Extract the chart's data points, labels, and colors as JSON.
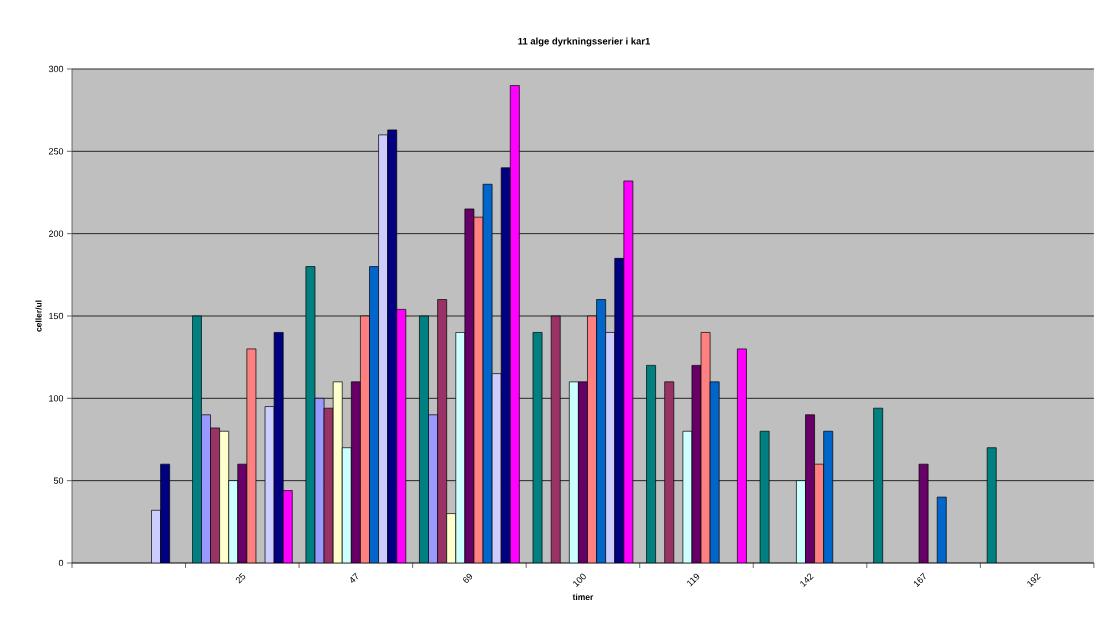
{
  "chart_data": {
    "type": "bar",
    "title": "11 alge dyrkningsserier i kar1",
    "xlabel": "timer",
    "ylabel": "celler/ul",
    "categories": [
      null,
      "25",
      "47",
      "69",
      "100",
      "119",
      "142",
      "167",
      "192"
    ],
    "series": [
      {
        "color": "#008080",
        "values": [
          null,
          150,
          180,
          150,
          140,
          120,
          80,
          94,
          70
        ]
      },
      {
        "color": "#9999ff",
        "values": [
          null,
          90,
          100,
          90,
          null,
          null,
          null,
          null,
          null
        ]
      },
      {
        "color": "#993366",
        "values": [
          null,
          82,
          94,
          160,
          150,
          110,
          null,
          null,
          null
        ]
      },
      {
        "color": "#ffffcc",
        "values": [
          null,
          80,
          110,
          30,
          null,
          null,
          null,
          null,
          null
        ]
      },
      {
        "color": "#ccffff",
        "values": [
          null,
          50,
          70,
          140,
          110,
          80,
          50,
          null,
          null
        ]
      },
      {
        "color": "#660066",
        "values": [
          null,
          60,
          110,
          215,
          110,
          120,
          90,
          60,
          null
        ]
      },
      {
        "color": "#ff8080",
        "values": [
          null,
          130,
          150,
          210,
          150,
          140,
          60,
          null,
          null
        ]
      },
      {
        "color": "#0066cc",
        "values": [
          null,
          null,
          180,
          230,
          160,
          110,
          80,
          40,
          null
        ]
      },
      {
        "color": "#ccccff",
        "values": [
          32,
          95,
          260,
          115,
          140,
          null,
          null,
          null,
          null
        ]
      },
      {
        "color": "#000080",
        "values": [
          60,
          140,
          263,
          240,
          185,
          null,
          null,
          null,
          null
        ]
      },
      {
        "color": "#ff00ff",
        "values": [
          null,
          44,
          154,
          290,
          232,
          130,
          null,
          null,
          null
        ]
      }
    ],
    "ylim": [
      0,
      300
    ],
    "yticks": [
      0,
      50,
      100,
      150,
      200,
      250,
      300
    ],
    "grid": "y"
  }
}
